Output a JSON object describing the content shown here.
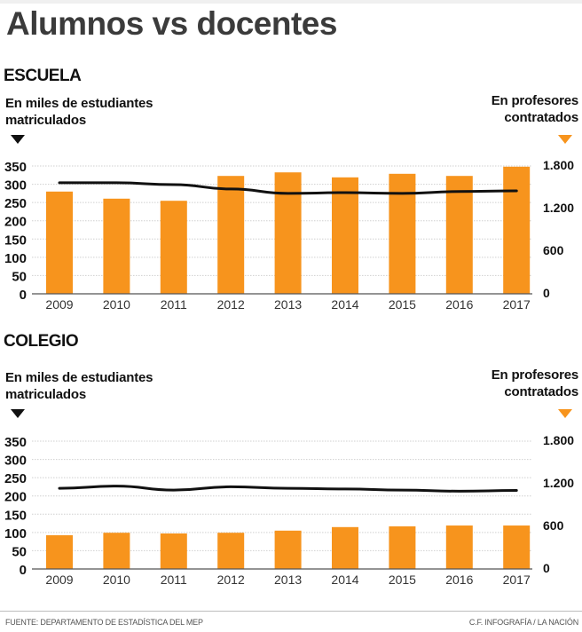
{
  "title": "Alumnos vs docentes",
  "colors": {
    "bars": "#F7941D",
    "line": "#111111",
    "grid": "#cfcfcf",
    "axis": "#555555"
  },
  "footer": {
    "source": "FUENTE: DEPARTAMENTO DE ESTADÍSTICA DEL MEP",
    "credit": "C.F. INFOGRAFÍA / LA NACIÓN"
  },
  "chart_data": [
    {
      "type": "bar",
      "title": "ESCUELA",
      "categories": [
        "2009",
        "2010",
        "2011",
        "2012",
        "2013",
        "2014",
        "2015",
        "2016",
        "2017"
      ],
      "ylabel": "En miles de estudiantes matriculados",
      "y2label": "En profesores contratados",
      "ylim": [
        0,
        350
      ],
      "yticks": [
        "0",
        "50",
        "100",
        "150",
        "200",
        "250",
        "300",
        "350"
      ],
      "y2lim": [
        0,
        1800
      ],
      "y2ticks": [
        "0",
        "600",
        "1.200",
        "1.800"
      ],
      "grid": true,
      "series": [
        {
          "name": "Profesores contratados",
          "type": "bar",
          "axis": "right",
          "values": [
            1440,
            1340,
            1310,
            1660,
            1710,
            1640,
            1690,
            1660,
            1790
          ]
        },
        {
          "name": "Estudiantes matriculados (miles)",
          "type": "line",
          "axis": "left",
          "values": [
            304,
            304,
            299,
            287,
            275,
            277,
            275,
            280,
            282
          ]
        }
      ]
    },
    {
      "type": "bar",
      "title": "COLEGIO",
      "categories": [
        "2009",
        "2010",
        "2011",
        "2012",
        "2013",
        "2014",
        "2015",
        "2016",
        "2017"
      ],
      "ylabel": "En miles de estudiantes matriculados",
      "y2label": "En profesores contratados",
      "ylim": [
        0,
        350
      ],
      "yticks": [
        "0",
        "50",
        "100",
        "150",
        "200",
        "250",
        "300",
        "350"
      ],
      "y2lim": [
        0,
        1800
      ],
      "y2ticks": [
        "0",
        "600",
        "1.200",
        "1.800"
      ],
      "grid": true,
      "series": [
        {
          "name": "Profesores contratados",
          "type": "bar",
          "axis": "right",
          "values": [
            475,
            510,
            500,
            510,
            540,
            590,
            600,
            612,
            612
          ]
        },
        {
          "name": "Estudiantes matriculados (miles)",
          "type": "line",
          "axis": "left",
          "values": [
            221,
            227,
            216,
            225,
            221,
            219,
            216,
            213,
            215
          ]
        }
      ]
    }
  ]
}
